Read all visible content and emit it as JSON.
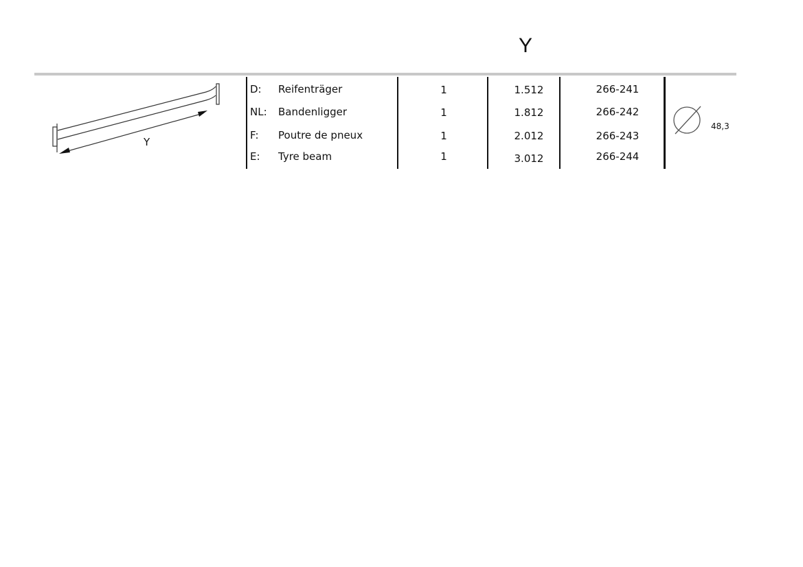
{
  "header": {
    "title": "Y"
  },
  "drawing": {
    "dimension_label": "Y"
  },
  "rows": [
    {
      "lang": "D:",
      "name": "Reifenträger",
      "qty": "1",
      "length": "1.512",
      "code": "266-241"
    },
    {
      "lang": "NL:",
      "name": "Bandenligger",
      "qty": "1",
      "length": "1.812",
      "code": "266-242"
    },
    {
      "lang": "F:",
      "name": "Poutre de pneux",
      "qty": "1",
      "length": "2.012",
      "code": "266-243"
    },
    {
      "lang": "E:",
      "name": "Tyre beam",
      "qty": "1",
      "length": "3.012",
      "code": "266-244"
    }
  ],
  "diameter": {
    "icon": "diameter-icon",
    "value": "48,3"
  }
}
